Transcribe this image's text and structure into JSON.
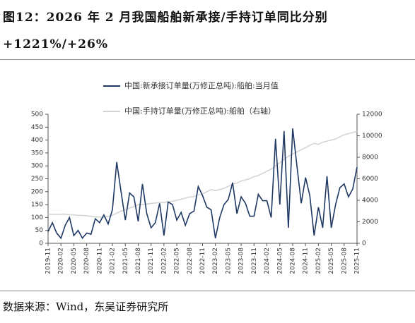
{
  "chart_data": {
    "type": "line",
    "title": "图12：2026 年 2 月我国船舶新承接/手持订单同比分别+1221%/+26%",
    "source": "数据来源：Wind，东吴证券研究所",
    "categories": [
      "2019-11",
      null,
      null,
      "2020-02",
      null,
      null,
      "2020-05",
      null,
      null,
      "2020-08",
      null,
      null,
      "2020-11",
      null,
      null,
      "2021-02",
      null,
      null,
      "2021-05",
      null,
      null,
      "2021-08",
      null,
      null,
      "2021-11",
      null,
      null,
      "2022-02",
      null,
      null,
      "2022-05",
      null,
      null,
      "2022-08",
      null,
      null,
      "2022-11",
      null,
      null,
      "2023-02",
      null,
      null,
      "2023-05",
      null,
      null,
      "2023-08",
      null,
      null,
      "2023-11",
      null,
      null,
      "2024-02",
      null,
      null,
      "2024-05",
      null,
      null,
      "2024-08",
      null,
      null,
      "2024-11",
      null,
      null,
      "2025-02",
      null,
      null,
      "2025-05",
      null,
      null,
      "2025-08",
      null,
      null,
      "2025-11"
    ],
    "series": [
      {
        "name": "中国:新承接订单量(万修正总吨):船舶:当月值",
        "color": "#1f3864",
        "axis": "y",
        "values": [
          45,
          80,
          40,
          20,
          70,
          100,
          30,
          50,
          20,
          40,
          35,
          95,
          80,
          110,
          75,
          130,
          315,
          200,
          90,
          195,
          180,
          85,
          230,
          115,
          60,
          80,
          155,
          30,
          160,
          150,
          90,
          120,
          70,
          115,
          125,
          220,
          185,
          140,
          130,
          20,
          100,
          150,
          170,
          235,
          115,
          180,
          155,
          105,
          105,
          190,
          165,
          165,
          100,
          405,
          150,
          435,
          60,
          445,
          300,
          155,
          255,
          185,
          30,
          140,
          60,
          260,
          60,
          150,
          215,
          230,
          180,
          210,
          295
        ]
      },
      {
        "name": "中国:手持订单量(万修正总吨):船舶（右轴）",
        "color": "#d4d4d4",
        "axis": "y2",
        "values": [
          2700,
          2700,
          2700,
          2700,
          2700,
          2650,
          2650,
          2600,
          2600,
          2550,
          2500,
          2450,
          2450,
          2400,
          2500,
          2600,
          2800,
          3000,
          3100,
          3300,
          3400,
          3600,
          3600,
          3650,
          3700,
          3750,
          3800,
          3800,
          3850,
          3900,
          4000,
          4100,
          4200,
          4300,
          4350,
          4500,
          4600,
          4800,
          5000,
          4900,
          5000,
          5100,
          5300,
          5500,
          5600,
          5800,
          5900,
          6000,
          6200,
          6300,
          6500,
          6700,
          6900,
          7200,
          7500,
          7800,
          8100,
          8300,
          8500,
          8700,
          8900,
          9100,
          9300,
          9200,
          9400,
          9500,
          9600,
          9700,
          9900,
          10100,
          10200,
          10300,
          10400
        ]
      }
    ],
    "ylim": [
      0,
      500
    ],
    "yticks": [
      0,
      50,
      100,
      150,
      200,
      250,
      300,
      350,
      400,
      450,
      500
    ],
    "y2lim": [
      0,
      12000
    ],
    "y2ticks": [
      0,
      2000,
      4000,
      6000,
      8000,
      10000,
      12000
    ],
    "legend": "top"
  }
}
